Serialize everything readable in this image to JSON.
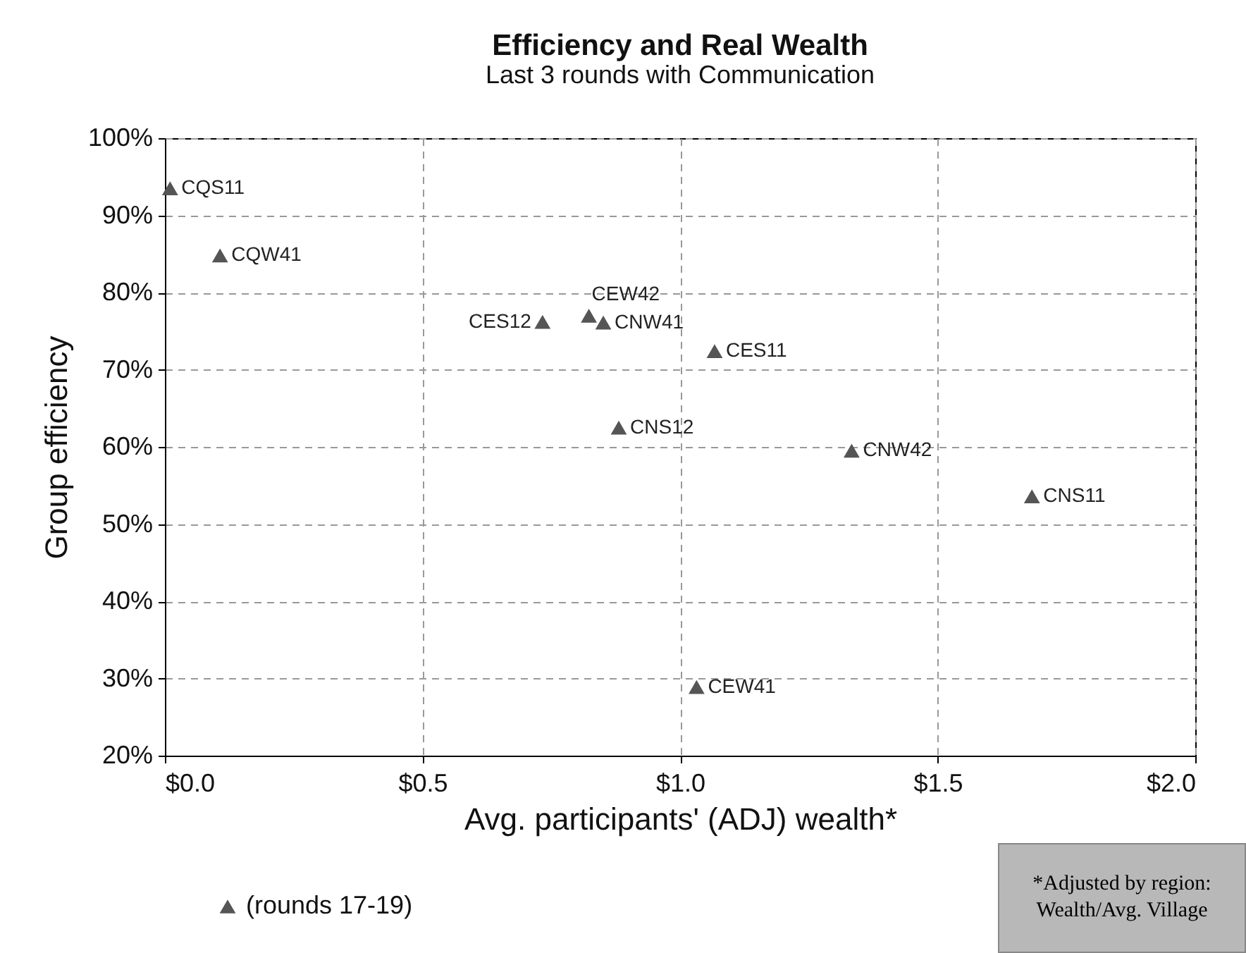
{
  "chart_data": {
    "type": "scatter",
    "title": "Efficiency and Real Wealth",
    "subtitle": "Last 3 rounds with Communication",
    "xlabel": "Avg. participants' (ADJ) wealth*",
    "ylabel": "Group efficiency",
    "x": [
      0.01,
      0.107,
      0.733,
      0.823,
      0.851,
      1.067,
      0.881,
      1.333,
      1.683,
      1.032
    ],
    "series": [
      {
        "name": "(rounds 17-19)",
        "color": "#555555",
        "values": [
          93.5,
          84.8,
          76.2,
          77.0,
          76.1,
          72.4,
          62.5,
          59.5,
          53.6,
          28.9
        ]
      }
    ],
    "xlim": [
      0,
      2
    ],
    "ylim": [
      20,
      100
    ],
    "xticks": [
      {
        "value": 0,
        "label": "$0.0"
      },
      {
        "value": 0.5,
        "label": "$0.5"
      },
      {
        "value": 1,
        "label": "$1.0"
      },
      {
        "value": 1.5,
        "label": "$1.5"
      },
      {
        "value": 2,
        "label": "$2.0"
      }
    ],
    "yticks": [
      {
        "value": 20,
        "label": "20%"
      },
      {
        "value": 30,
        "label": "30%"
      },
      {
        "value": 40,
        "label": "40%"
      },
      {
        "value": 50,
        "label": "50%"
      },
      {
        "value": 60,
        "label": "60%"
      },
      {
        "value": 70,
        "label": "70%"
      },
      {
        "value": 80,
        "label": "80%"
      },
      {
        "value": 90,
        "label": "90%"
      },
      {
        "value": 100,
        "label": "100%"
      }
    ],
    "grid": true,
    "legend": "bottom",
    "marker": "triangle",
    "annotations": [
      {
        "text": "CQS11",
        "x": 0.01,
        "y": 93.5
      },
      {
        "text": "CQW41",
        "x": 0.107,
        "y": 84.8
      },
      {
        "text": "CES12",
        "x": 0.733,
        "y": 76.2
      },
      {
        "text": "CEW42",
        "x": 0.823,
        "y": 77.0
      },
      {
        "text": "CNW41",
        "x": 0.851,
        "y": 76.1
      },
      {
        "text": "CES11",
        "x": 1.067,
        "y": 72.4
      },
      {
        "text": "CNS12",
        "x": 0.881,
        "y": 62.5
      },
      {
        "text": "CNW42",
        "x": 1.333,
        "y": 59.5
      },
      {
        "text": "CNS11",
        "x": 1.683,
        "y": 53.6
      },
      {
        "text": "CEW41",
        "x": 1.032,
        "y": 28.9
      },
      "*Adjusted by region:\nWealth/Avg. Village"
    ]
  }
}
